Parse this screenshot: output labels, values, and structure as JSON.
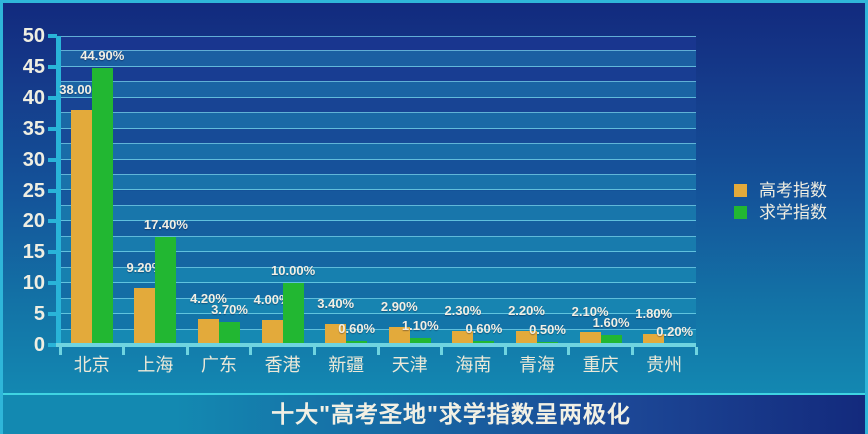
{
  "title_bar": {
    "title": "十大\"高考圣地\"求学指数呈两极化"
  },
  "legend": {
    "items": [
      {
        "label": "高考指数",
        "color": "#e3aa3b"
      },
      {
        "label": "求学指数",
        "color": "#22b732"
      }
    ]
  },
  "colors": {
    "border_cyan": "#2fb6d9",
    "axis_cyan": "#29b4d8",
    "baseline_cyan": "#6fd4e0",
    "gridline": "rgba(125,220,240,0.72)",
    "bar_orange": "#e3aa3b",
    "bar_green": "#22b732",
    "text_cream": "#f0ede0"
  },
  "chart_data": {
    "type": "bar",
    "title": "十大\"高考圣地\"求学指数呈两极化",
    "categories": [
      "北京",
      "上海",
      "广东",
      "香港",
      "新疆",
      "天津",
      "海南",
      "青海",
      "重庆",
      "贵州"
    ],
    "series": [
      {
        "name": "高考指数",
        "color": "#e3aa3b",
        "values": [
          38.0,
          9.2,
          4.2,
          4.0,
          3.4,
          2.9,
          2.3,
          2.2,
          2.1,
          1.8
        ],
        "labels": [
          "38.00%",
          "9.20%",
          "4.20%",
          "4.00%",
          "3.40%",
          "2.90%",
          "2.30%",
          "2.20%",
          "2.10%",
          "1.80%"
        ]
      },
      {
        "name": "求学指数",
        "color": "#22b732",
        "values": [
          44.9,
          17.4,
          3.7,
          10.0,
          0.6,
          1.1,
          0.6,
          0.5,
          1.6,
          0.2
        ],
        "labels": [
          "44.90%",
          "17.40%",
          "3.70%",
          "10.00%",
          "0.60%",
          "1.10%",
          "0.60%",
          "0.50%",
          "1.60%",
          "0.20%"
        ]
      }
    ],
    "xlabel": "",
    "ylabel": "",
    "ylim": [
      0,
      50
    ],
    "ytick_step": 5,
    "yticks": [
      0,
      5,
      10,
      15,
      20,
      25,
      30,
      35,
      40,
      45,
      50
    ],
    "grid": true,
    "band_fill": true,
    "legend_position": "right"
  }
}
